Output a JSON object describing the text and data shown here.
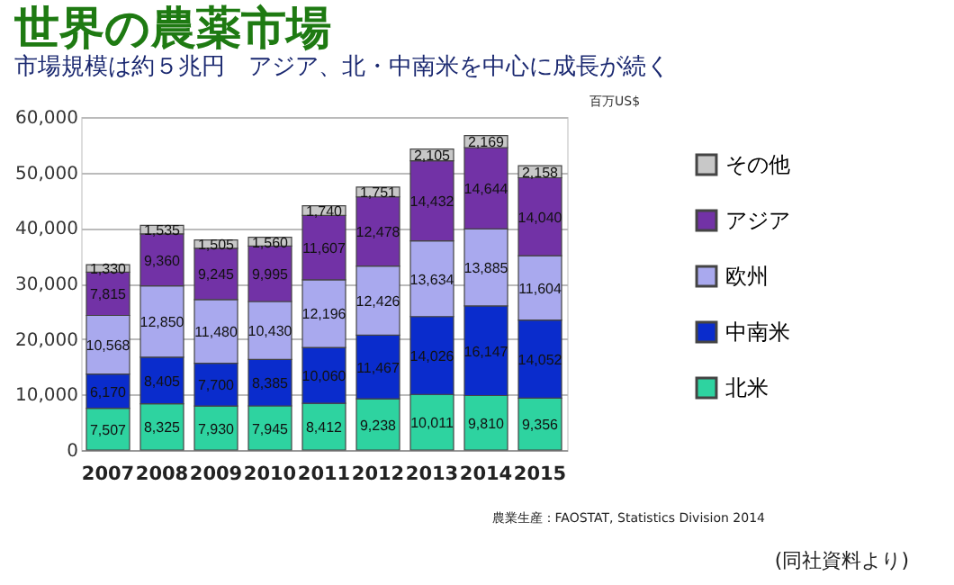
{
  "chart_data": {
    "type": "bar",
    "stacked": true,
    "title": "世界の農薬市場",
    "subtitle": "市場規模は約５兆円　アジア、北・中南米を中心に成長が続く",
    "ylabel": "百万US$",
    "categories": [
      "2007",
      "2008",
      "2009",
      "2010",
      "2011",
      "2012",
      "2013",
      "2014",
      "2015"
    ],
    "series": [
      {
        "name": "北米",
        "color": "#2ed3a0",
        "values": [
          7507,
          8325,
          7930,
          7945,
          8412,
          9238,
          10011,
          9810,
          9356
        ],
        "value_labels": [
          "7,507",
          "8,325",
          "7,930",
          "7,945",
          "8,412",
          "9,238",
          "10,011",
          "9,810",
          "9,356"
        ]
      },
      {
        "name": "中南米",
        "color": "#0a2ccc",
        "values": [
          6170,
          8405,
          7700,
          8385,
          10060,
          11467,
          14026,
          16147,
          14052
        ],
        "value_labels": [
          "6,170",
          "8,405",
          "7,700",
          "8,385",
          "10,060",
          "11,467",
          "14,026",
          "16,147",
          "14,052"
        ]
      },
      {
        "name": "欧州",
        "color": "#a9a9ee",
        "values": [
          10568,
          12850,
          11480,
          10430,
          12196,
          12426,
          13634,
          13885,
          11604
        ],
        "value_labels": [
          "10,568",
          "12,850",
          "11,480",
          "10,430",
          "12,196",
          "12,426",
          "13,634",
          "13,885",
          "11,604"
        ]
      },
      {
        "name": "アジア",
        "color": "#7232a6",
        "values": [
          7815,
          9360,
          9245,
          9995,
          11607,
          12478,
          14432,
          14644,
          14040
        ],
        "value_labels": [
          "7,815",
          "9,360",
          "9,245",
          "9,995",
          "11,607",
          "12,478",
          "14,432",
          "14,644",
          "14,040"
        ]
      },
      {
        "name": "その他",
        "color": "#c8c8c8",
        "values": [
          1330,
          1535,
          1505,
          1560,
          1740,
          1751,
          2105,
          2169,
          2158
        ],
        "value_labels": [
          "1,330",
          "1,535",
          "1,505",
          "1,560",
          "1,740",
          "1,751",
          "2,105",
          "2,169",
          "2,158"
        ]
      }
    ],
    "ylim": [
      0,
      60000
    ],
    "yticks": [
      0,
      {
        "value": 10000,
        "label": "10,000"
      },
      {
        "value": 20000,
        "label": "20,000"
      },
      {
        "value": 30000,
        "label": "30,000"
      },
      {
        "value": 40000,
        "label": "40,000"
      },
      {
        "value": 50000,
        "label": "50,000"
      },
      {
        "value": 60000,
        "label": "60,000"
      }
    ],
    "grid": "y",
    "legend": "right",
    "annotations": [
      "農業生産：FAOSTAT, Statistics Division 2014",
      "(同社資料より)"
    ]
  }
}
